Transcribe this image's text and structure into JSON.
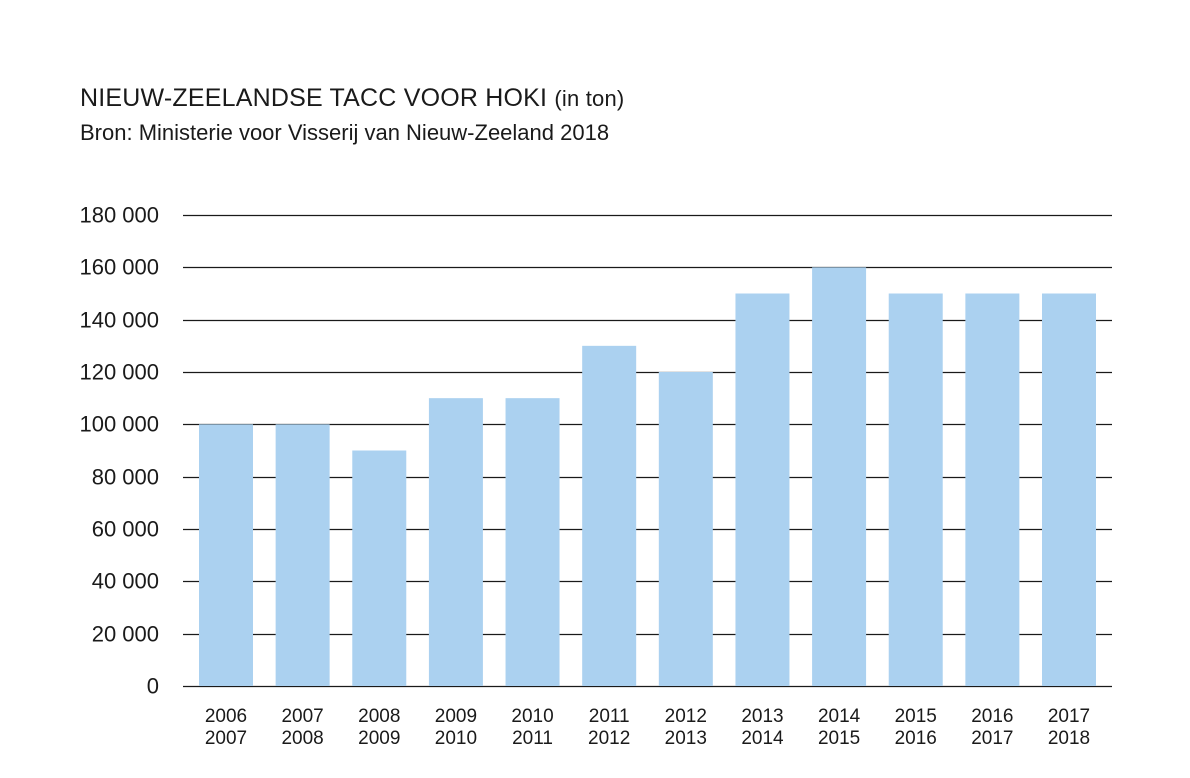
{
  "chart_data": {
    "type": "bar",
    "title": "NIEUW-ZEELANDSE TACC VOOR HOKI",
    "title_unit": "(in ton)",
    "subtitle": "Bron: Ministerie voor Visserij van Nieuw-Zeeland 2018",
    "categories": [
      [
        "2006",
        "2007"
      ],
      [
        "2007",
        "2008"
      ],
      [
        "2008",
        "2009"
      ],
      [
        "2009",
        "2010"
      ],
      [
        "2010",
        "2011"
      ],
      [
        "2011",
        "2012"
      ],
      [
        "2012",
        "2013"
      ],
      [
        "2013",
        "2014"
      ],
      [
        "2014",
        "2015"
      ],
      [
        "2015",
        "2016"
      ],
      [
        "2016",
        "2017"
      ],
      [
        "2017",
        "2018"
      ]
    ],
    "values": [
      100000,
      100000,
      90000,
      110000,
      110000,
      130000,
      120000,
      150000,
      160000,
      150000,
      150000,
      150000
    ],
    "ylim": [
      0,
      180000
    ],
    "yticks": [
      0,
      20000,
      40000,
      60000,
      80000,
      100000,
      120000,
      140000,
      160000,
      180000
    ],
    "ytick_labels": [
      "0",
      "20 000",
      "40 000",
      "60 000",
      "80 000",
      "100 000",
      "120 000",
      "140 000",
      "160 000",
      "180 000"
    ],
    "grid": true,
    "bar_color": "#abd1f0",
    "grid_color": "#1a1a1a"
  }
}
